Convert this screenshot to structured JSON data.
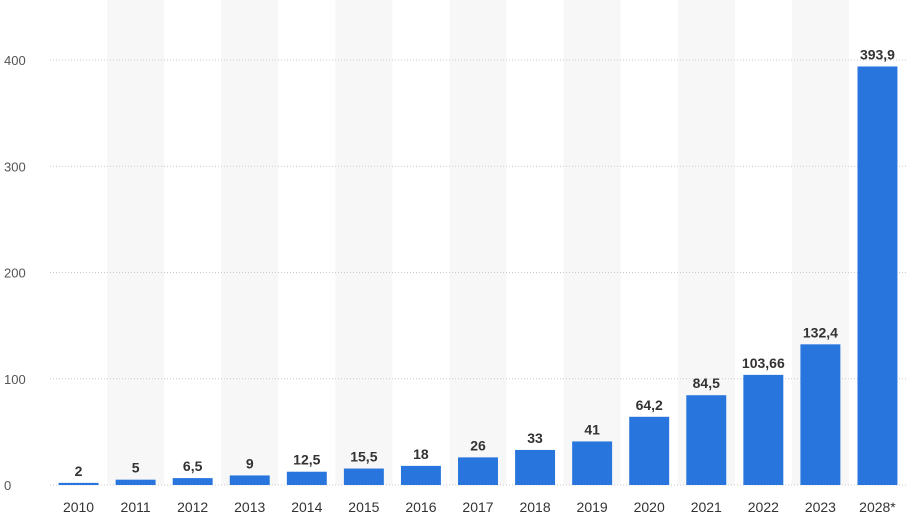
{
  "colors": {
    "bar": "#2876dd",
    "stripe": "#f7f7f7",
    "grid": "#c8c8c8",
    "text": "#333333",
    "axis_text": "#555555"
  },
  "chart_data": {
    "type": "bar",
    "title": "",
    "xlabel": "",
    "ylabel": "",
    "categories": [
      "2010",
      "2011",
      "2012",
      "2013",
      "2014",
      "2015",
      "2016",
      "2017",
      "2018",
      "2019",
      "2020",
      "2021",
      "2022",
      "2023",
      "2028*"
    ],
    "values": [
      2,
      5,
      6.5,
      9,
      12.5,
      15.5,
      18,
      26,
      33,
      41,
      64.2,
      84.5,
      103.66,
      132.4,
      393.9
    ],
    "data_labels": [
      "2",
      "5",
      "6,5",
      "9",
      "12,5",
      "15,5",
      "18",
      "26",
      "33",
      "41",
      "64,2",
      "84,5",
      "103,66",
      "132,4",
      "393,9"
    ],
    "yticks": [
      0,
      100,
      200,
      300,
      400
    ],
    "ylim": [
      0,
      400
    ],
    "grid": true,
    "legend": "none"
  }
}
